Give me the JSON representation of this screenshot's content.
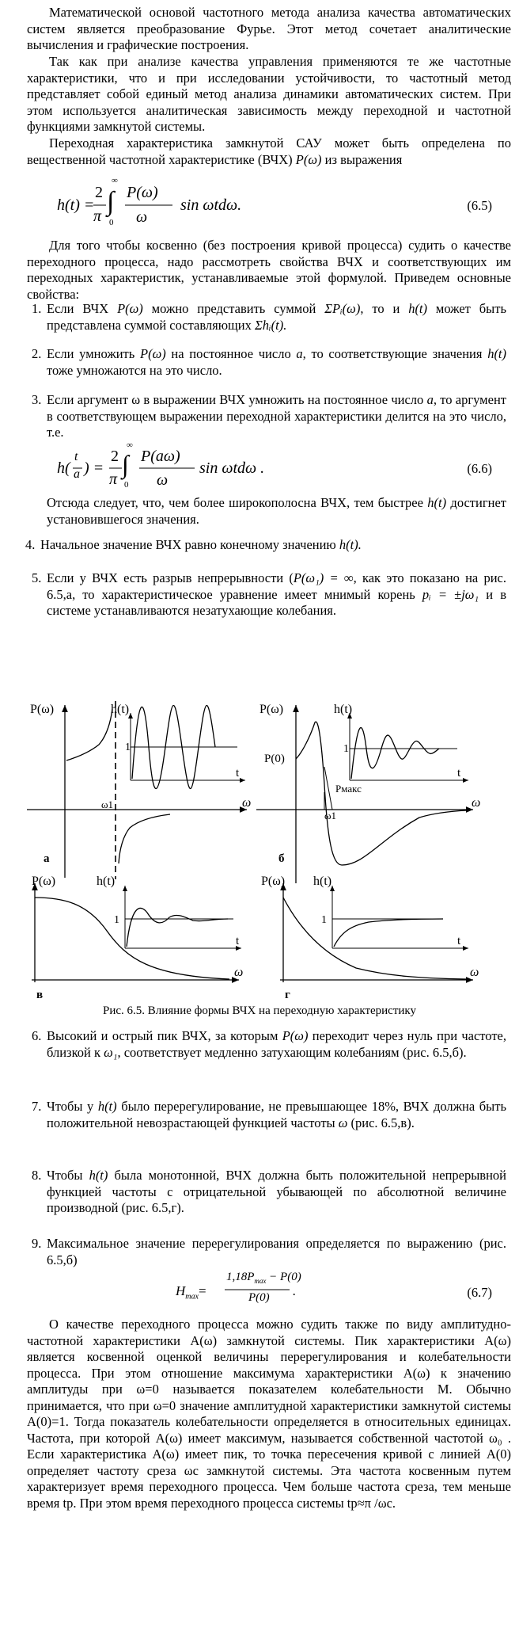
{
  "intro": {
    "p1": "Математической основой частотного метода анализа качества автоматических систем является преобразование Фурье. Этот метод сочетает аналитические вычисления и графические построения.",
    "p2": "Так как при анализе качества управления применяются те же частотные характеристики, что и при исследовании устойчивости, то частотный метод представляет собой единый метод анализа динамики автоматических систем. При этом используется аналитическая зависимость между переходной и частотной функциями замкнутой системы.",
    "p3_a": "Переходная характеристика замкнутой САУ может быть определена по вещественной частотной характеристике (ВЧХ) ",
    "p3_b": "P(ω)",
    "p3_c": " из выражения"
  },
  "eq65": {
    "lhs": "h(t) =",
    "coef_num": "2",
    "coef_den": "π",
    "int_top": "∞",
    "int_bot": "0",
    "frac_num": "P(ω)",
    "frac_den": "ω",
    "tail": "sin ωtdω.",
    "number": "(6.5)"
  },
  "p4": "Для того чтобы косвенно (без построения кривой процесса) судить о качестве переходного процесса, надо рассмотреть свойства ВЧХ и соответствующих им переходных характеристик, устанавливаемые этой формулой. Приведем основные свойства:",
  "items": [
    {
      "n": "1.",
      "a": "Если ВЧХ ",
      "b": "P(ω)",
      "c": " можно представить суммой ",
      "d": "ΣPᵢ(ω)",
      "e": ", то и ",
      "f": "h(t)",
      "g": " может быть представлена суммой составляющих ",
      "h": "Σhᵢ(t)."
    },
    {
      "n": "2.",
      "a": "Если умножить ",
      "b": "P(ω)",
      "c": " на постоянное число ",
      "d": "a",
      "e": ", то соответствующие значения ",
      "f": "h(t)",
      "g": " тоже умножаются на это число."
    },
    {
      "n": "3.",
      "a": "Если аргумент ω в выражении ВЧХ умножить на постоянное число ",
      "b": "a",
      "c": ", то аргумент в соответствующем выражении переходной характеристики делится на это число, т.е."
    },
    {
      "n": "4.",
      "a": "Начальное значение ВЧХ равно конечному значению ",
      "b": "h(t)."
    },
    {
      "n": "5.",
      "a": "Если у ВЧХ есть разрыв непрерывности (",
      "b": "P(ω₁) = ∞",
      "c": ", как это показано на рис. 6.5,а, то характеристическое уравнение имеет мнимый корень ",
      "d": "pᵢ = ±jω₁",
      "e": " и в системе устанавливаются незатухающие колебания."
    }
  ],
  "eq66": {
    "lhs": "h(",
    "t": "t",
    "a": "a",
    "rp": ") =",
    "coef_num": "2",
    "coef_den": "π",
    "int_top": "∞",
    "int_bot": "0",
    "frac_num": "P(aω)",
    "frac_den": "ω",
    "tail": "sin ωtdω .",
    "number": "(6.6)"
  },
  "item3_after": {
    "a": "Отсюда следует, что, чем более широкополосна ВЧХ, тем быстрее ",
    "b": "h(t)",
    "c": " достигнет установившегося значения."
  },
  "figure": {
    "a": {
      "p": "P(ω)",
      "h": "h(t)",
      "one": "1",
      "t": "t",
      "w": "ω",
      "w1": "ω1",
      "tag": "а"
    },
    "b": {
      "p": "P(ω)",
      "h": "h(t)",
      "p0": "P(0)",
      "one": "1",
      "t": "t",
      "w": "ω",
      "w1": "ω1",
      "pmax": "Pмакс",
      "tag": "б"
    },
    "c": {
      "p": "P(ω)",
      "h": "h(t)",
      "one": "1",
      "t": "t",
      "w": "ω",
      "tag": "в"
    },
    "d": {
      "p": "P(ω)",
      "h": "h(t)",
      "one": "1",
      "t": "t",
      "w": "ω",
      "tag": "г"
    },
    "caption": "Рис. 6.5. Влияние формы ВЧХ на переходную характеристику"
  },
  "items2": [
    {
      "n": "6.",
      "a": "Высокий и острый пик ВЧХ, за которым ",
      "b": "P(ω)",
      "c": " переходит через нуль при частоте, близкой к ",
      "d": "ω₁",
      "e": ", соответствует медленно затухающим колебаниям (рис. 6.5,б)."
    },
    {
      "n": "7.",
      "a": "Чтобы у ",
      "b": "h(t)",
      "c": " было перерегулирование, не превышающее 18%, ВЧХ должна быть положительной невозрастающей функцией частоты ",
      "d": "ω",
      "e": " (рис. 6.5,в)."
    },
    {
      "n": "8.",
      "a": "Чтобы ",
      "b": "h(t)",
      "c": " была монотонной, ВЧХ должна быть положительной непрерывной функцией частоты с отрицательной убывающей по абсолютной величине производной (рис. 6.5,г)."
    },
    {
      "n": "9.",
      "a": "Максимальное значение перерегулирования определяется по выражению (рис. 6.5,б)"
    }
  ],
  "eq67": {
    "lhs": "H",
    "lhs_sub": "max",
    "eq": "=",
    "num": "1,18P",
    "num_sub": "max",
    "num_tail": " − P(0)",
    "den": "P(0)",
    "dot": ".",
    "number": "(6.7)"
  },
  "final": "О качестве переходного процесса можно судить также по виду амплитудно-частотной характеристики A(ω) замкнутой системы. Пик характеристики A(ω) является косвенной оценкой величины перерегулирования и колебательности процесса. При этом отношение максимума характеристики A(ω) к значению амплитуды при ω=0 называется показателем колебательности M. Обычно принимается, что при ω=0 значение амплитудной характеристики замкнутой системы A(0)=1. Тогда показатель колебательности определяется в относительных единицах. Частота, при которой A(ω) имеет максимум, называется собственной частотой ω₀ . Если характеристика A(ω) имеет пик, то точка пересечения кривой с линией A(0) определяет частоту среза ωc замкнутой системы. Эта частота косвенным путем характеризует время переходного процесса. Чем больше частота среза, тем меньше время tp. При этом время переходного процесса системы tp≈π /ωc."
}
